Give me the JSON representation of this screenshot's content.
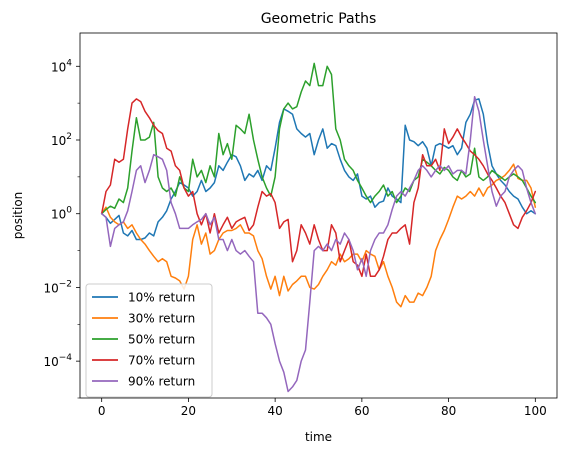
{
  "chart_data": {
    "type": "line",
    "title": "Geometric Paths",
    "xlabel": "time",
    "ylabel": "position",
    "xlim": [
      -5,
      105
    ],
    "ylim": [
      1e-05,
      80000
    ],
    "yscale": "log",
    "grid": false,
    "legend_position": "lower-left",
    "x_ticks": [
      0,
      20,
      40,
      60,
      80,
      100
    ],
    "x_tick_labels": [
      "0",
      "20",
      "40",
      "60",
      "80",
      "100"
    ],
    "y_ticks": [
      0.0001,
      0.01,
      1,
      100,
      10000
    ],
    "y_tick_labels": [
      {
        "base": "10",
        "exp": "−4"
      },
      {
        "base": "10",
        "exp": "−2"
      },
      {
        "base": "10",
        "exp": "0"
      },
      {
        "base": "10",
        "exp": "2"
      },
      {
        "base": "10",
        "exp": "4"
      }
    ],
    "x": [
      0,
      1,
      2,
      3,
      4,
      5,
      6,
      7,
      8,
      9,
      10,
      11,
      12,
      13,
      14,
      15,
      16,
      17,
      18,
      19,
      20,
      21,
      22,
      23,
      24,
      25,
      26,
      27,
      28,
      29,
      30,
      31,
      32,
      33,
      34,
      35,
      36,
      37,
      38,
      39,
      40,
      41,
      42,
      43,
      44,
      45,
      46,
      47,
      48,
      49,
      50,
      51,
      52,
      53,
      54,
      55,
      56,
      57,
      58,
      59,
      60,
      61,
      62,
      63,
      64,
      65,
      66,
      67,
      68,
      69,
      70,
      71,
      72,
      73,
      74,
      75,
      76,
      77,
      78,
      79,
      80,
      81,
      82,
      83,
      84,
      85,
      86,
      87,
      88,
      89,
      90,
      91,
      92,
      93,
      94,
      95,
      96,
      97,
      98,
      99,
      100
    ],
    "series": [
      {
        "name": "10% return",
        "color": "#1f77b4",
        "values": [
          1,
          0.8,
          0.55,
          0.7,
          0.9,
          0.3,
          0.25,
          0.35,
          0.2,
          0.2,
          0.22,
          0.3,
          0.25,
          0.6,
          0.8,
          1.2,
          2.5,
          4,
          7,
          6,
          5,
          3,
          4,
          8,
          4,
          5,
          7,
          20,
          15,
          25,
          40,
          35,
          20,
          8,
          12,
          10,
          15,
          8,
          20,
          15,
          60,
          300,
          700,
          600,
          500,
          200,
          150,
          120,
          150,
          40,
          100,
          200,
          60,
          80,
          70,
          30,
          15,
          10,
          8,
          12,
          3,
          2.5,
          3,
          1.5,
          2,
          2.2,
          5,
          3,
          2.5,
          2,
          250,
          100,
          90,
          70,
          90,
          60,
          20,
          70,
          80,
          70,
          60,
          70,
          40,
          60,
          300,
          500,
          1200,
          1300,
          500,
          80,
          20,
          12,
          8,
          6,
          4,
          3,
          2.5,
          1.5,
          1,
          1.2,
          1
        ]
      },
      {
        "name": "30% return",
        "color": "#ff7f0e",
        "values": [
          1,
          1.5,
          0.8,
          0.6,
          0.5,
          0.6,
          0.4,
          0.5,
          0.3,
          0.2,
          0.15,
          0.1,
          0.07,
          0.05,
          0.06,
          0.05,
          0.02,
          0.018,
          0.015,
          0.009,
          0.02,
          0.2,
          0.5,
          0.15,
          0.3,
          0.08,
          0.1,
          0.2,
          0.3,
          0.35,
          0.35,
          0.4,
          0.5,
          0.3,
          0.3,
          0.25,
          0.1,
          0.06,
          0.02,
          0.009,
          0.02,
          0.006,
          0.02,
          0.008,
          0.012,
          0.015,
          0.02,
          0.02,
          0.01,
          0.009,
          0.012,
          0.02,
          0.03,
          0.05,
          0.04,
          0.08,
          0.05,
          0.06,
          0.08,
          0.08,
          0.05,
          0.1,
          0.08,
          0.07,
          0.03,
          0.05,
          0.02,
          0.01,
          0.004,
          0.003,
          0.006,
          0.004,
          0.004,
          0.007,
          0.006,
          0.01,
          0.02,
          0.1,
          0.2,
          0.35,
          0.7,
          1.5,
          3,
          2.5,
          3,
          4,
          3,
          5,
          3,
          5,
          6,
          8,
          9,
          11,
          15,
          22,
          9,
          8,
          8,
          5,
          1.5
        ]
      },
      {
        "name": "50% return",
        "color": "#2ca02c",
        "values": [
          1,
          1.3,
          1.6,
          1.4,
          2.5,
          2,
          5,
          50,
          400,
          100,
          100,
          120,
          300,
          10,
          5,
          4,
          5,
          3,
          10,
          5,
          4,
          30,
          10,
          15,
          7,
          20,
          10,
          150,
          40,
          80,
          30,
          250,
          200,
          150,
          500,
          100,
          30,
          10,
          5,
          3,
          10,
          200,
          700,
          1000,
          700,
          800,
          2000,
          4000,
          3000,
          12000,
          3000,
          3000,
          10000,
          6000,
          200,
          100,
          30,
          20,
          15,
          8,
          5,
          3,
          2,
          3,
          4,
          6,
          3,
          4,
          2,
          3,
          5,
          4,
          8,
          10,
          30,
          25,
          20,
          15,
          12,
          18,
          15,
          10,
          8,
          15,
          10,
          12,
          60,
          10,
          8,
          10,
          15,
          12,
          10,
          8,
          10,
          12,
          10,
          8,
          5,
          3,
          2
        ]
      },
      {
        "name": "70% return",
        "color": "#d62728",
        "values": [
          1,
          4,
          6,
          30,
          25,
          30,
          200,
          1000,
          1300,
          1100,
          600,
          400,
          250,
          180,
          150,
          60,
          50,
          20,
          15,
          5,
          3,
          4,
          1,
          0.5,
          1,
          0.3,
          1,
          0.3,
          0.5,
          0.8,
          0.4,
          0.6,
          0.7,
          0.8,
          0.35,
          0.5,
          1.5,
          4,
          3,
          3.5,
          2,
          0.4,
          0.6,
          0.7,
          0.05,
          0.1,
          0.5,
          0.3,
          0.15,
          0.5,
          0.2,
          0.1,
          0.1,
          0.5,
          0.3,
          0.05,
          0.1,
          0.2,
          0.05,
          0.04,
          0.02,
          0.08,
          0.02,
          0.02,
          0.03,
          0.07,
          0.2,
          0.3,
          0.3,
          0.4,
          0.5,
          0.15,
          2,
          5,
          40,
          20,
          20,
          30,
          15,
          200,
          80,
          120,
          200,
          120,
          80,
          50,
          40,
          30,
          20,
          12,
          8,
          5,
          3,
          2,
          1,
          0.5,
          0.4,
          0.8,
          1.2,
          2,
          4
        ]
      },
      {
        "name": "90% return",
        "color": "#9467bd",
        "values": [
          1,
          0.8,
          0.13,
          0.4,
          0.5,
          0.6,
          1.2,
          4,
          15,
          20,
          7,
          15,
          40,
          35,
          30,
          15,
          2,
          1,
          0.4,
          0.4,
          0.4,
          0.5,
          0.6,
          0.7,
          1,
          0.5,
          0.8,
          0.2,
          0.2,
          0.1,
          0.2,
          0.1,
          0.08,
          0.1,
          0.07,
          0.05,
          0.002,
          0.002,
          0.0015,
          0.001,
          0.0003,
          0.0001,
          5e-05,
          1.5e-05,
          2e-05,
          3e-05,
          0.0001,
          0.0002,
          0.004,
          0.1,
          0.13,
          0.1,
          0.15,
          0.1,
          0.2,
          0.15,
          0.3,
          0.2,
          0.1,
          0.03,
          0.06,
          0.02,
          0.1,
          0.2,
          0.3,
          0.3,
          0.5,
          1.3,
          3,
          4,
          3,
          5,
          8,
          15,
          20,
          15,
          10,
          15,
          20,
          15,
          20,
          12,
          15,
          15,
          12,
          100,
          1500,
          600,
          100,
          20,
          4,
          1.6,
          3,
          4,
          10,
          15,
          20,
          15,
          5,
          2,
          1
        ]
      }
    ]
  }
}
